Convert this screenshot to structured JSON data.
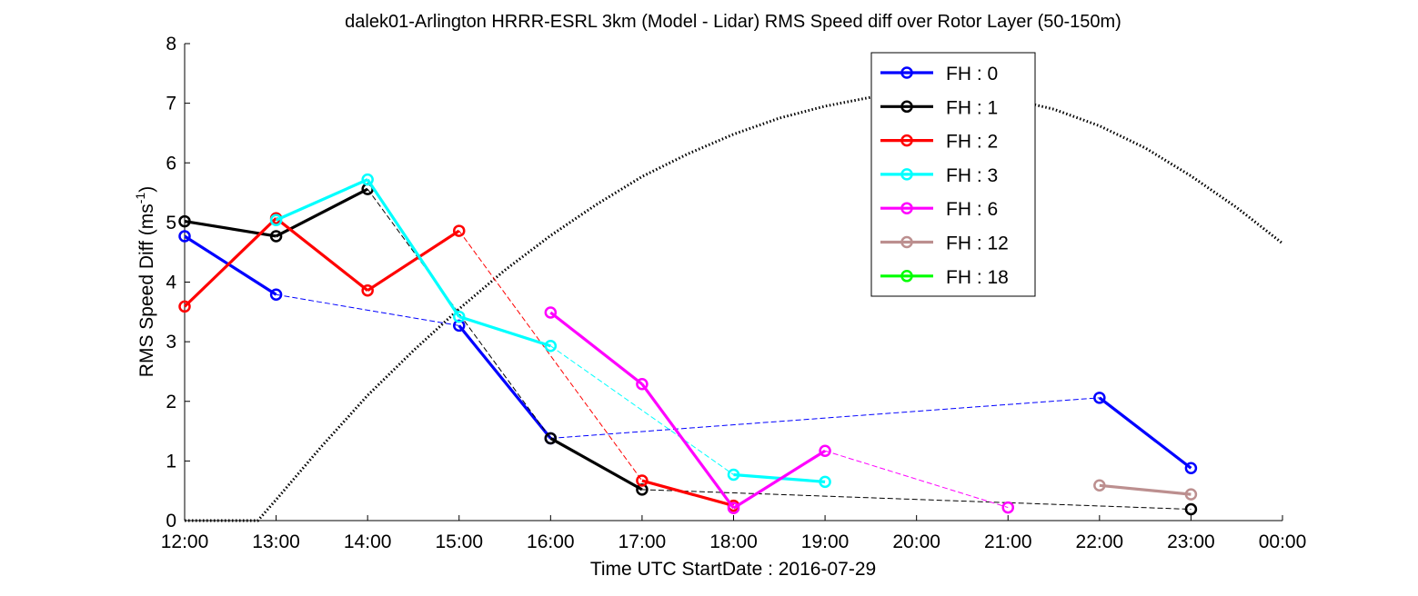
{
  "chart_data": {
    "type": "line",
    "title": "dalek01-Arlington HRRR-ESRL 3km (Model - Lidar) RMS Speed diff over Rotor Layer (50-150m)",
    "ylabel_main": "RMS Speed Diff (ms",
    "ylabel_sup": "-1",
    "ylabel_close": ")",
    "xlabel": "Time UTC    StartDate : 2016-07-29",
    "xlim": [
      12,
      24
    ],
    "ylim": [
      0,
      8
    ],
    "x_ticks": [
      12,
      13,
      14,
      15,
      16,
      17,
      18,
      19,
      20,
      21,
      22,
      23,
      24
    ],
    "x_tick_labels": [
      "12:00",
      "13:00",
      "14:00",
      "15:00",
      "16:00",
      "17:00",
      "18:00",
      "19:00",
      "20:00",
      "21:00",
      "22:00",
      "23:00",
      "00:00"
    ],
    "y_ticks": [
      0,
      1,
      2,
      3,
      4,
      5,
      6,
      7,
      8
    ],
    "y_tick_labels": [
      "0",
      "1",
      "2",
      "3",
      "4",
      "5",
      "6",
      "7",
      "8"
    ],
    "grid": false,
    "legend_position": "top-right",
    "series": [
      {
        "name": "FH : 0",
        "color": "#0000ff",
        "points": [
          [
            12,
            4.77
          ],
          [
            13,
            3.79
          ],
          [
            15,
            3.27
          ],
          [
            16,
            1.38
          ],
          [
            22,
            2.06
          ],
          [
            23,
            0.88
          ]
        ]
      },
      {
        "name": "FH : 1",
        "color": "#000000",
        "points": [
          [
            12,
            5.02
          ],
          [
            13,
            4.77
          ],
          [
            14,
            5.56
          ],
          [
            16,
            1.38
          ],
          [
            17,
            0.52
          ],
          [
            23,
            0.19
          ]
        ]
      },
      {
        "name": "FH : 2",
        "color": "#ff0000",
        "points": [
          [
            12,
            3.59
          ],
          [
            13,
            5.07
          ],
          [
            14,
            3.86
          ],
          [
            15,
            4.86
          ],
          [
            17,
            0.67
          ],
          [
            18,
            0.25
          ]
        ]
      },
      {
        "name": "FH : 3",
        "color": "#00ffff",
        "points": [
          [
            13,
            5.04
          ],
          [
            14,
            5.72
          ],
          [
            15,
            3.42
          ],
          [
            16,
            2.93
          ],
          [
            18,
            0.77
          ],
          [
            19,
            0.65
          ]
        ]
      },
      {
        "name": "FH : 6",
        "color": "#ff00ff",
        "points": [
          [
            16,
            3.49
          ],
          [
            17,
            2.29
          ],
          [
            18,
            0.21
          ],
          [
            19,
            1.17
          ],
          [
            21,
            0.22
          ]
        ]
      },
      {
        "name": "FH : 12",
        "color": "#bc8f8f",
        "points": [
          [
            22,
            0.59
          ],
          [
            23,
            0.44
          ]
        ]
      },
      {
        "name": "FH : 18",
        "color": "#00ff00",
        "points": []
      }
    ],
    "sun_curve": {
      "color": "#000000",
      "style": "dotted",
      "points": [
        [
          12,
          0
        ],
        [
          12.8,
          0
        ],
        [
          13,
          0.35
        ],
        [
          13.5,
          1.25
        ],
        [
          14,
          2.1
        ],
        [
          14.5,
          2.85
        ],
        [
          15,
          3.55
        ],
        [
          15.5,
          4.2
        ],
        [
          16,
          4.78
        ],
        [
          16.5,
          5.3
        ],
        [
          17,
          5.77
        ],
        [
          17.5,
          6.15
        ],
        [
          18,
          6.48
        ],
        [
          18.5,
          6.75
        ],
        [
          19,
          6.95
        ],
        [
          19.5,
          7.1
        ],
        [
          20,
          7.18
        ],
        [
          20.5,
          7.17
        ],
        [
          21,
          7.08
        ],
        [
          21.5,
          6.9
        ],
        [
          22,
          6.62
        ],
        [
          22.5,
          6.25
        ],
        [
          23,
          5.78
        ],
        [
          23.5,
          5.25
        ],
        [
          24,
          4.65
        ]
      ]
    }
  }
}
